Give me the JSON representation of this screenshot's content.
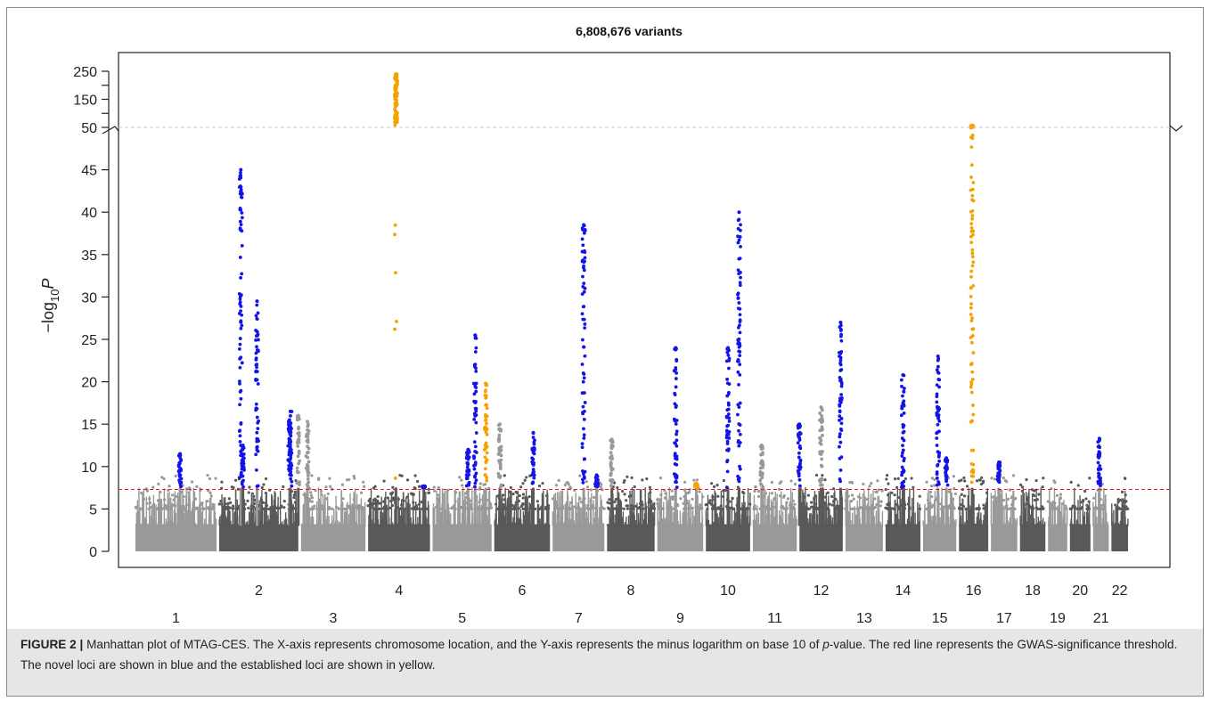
{
  "figure": {
    "caption_label": "FIGURE 2 |",
    "caption_parts": [
      "Manhattan plot of MTAG-CES. The X-axis represents chromosome location, and the Y-axis represents the minus logarithm on base 10 of ",
      "p",
      "-value. The red line represents the GWAS-significance threshold. The novel loci are shown in blue and the established loci are shown in yellow."
    ]
  },
  "chart_data": {
    "type": "scatter",
    "subtype": "manhattan",
    "title": "6,808,676 variants",
    "ylabel_parts": {
      "prefix": "−log",
      "sub": "10",
      "italic": "P"
    },
    "xlabel": "",
    "y_ticks_lower": [
      0,
      5,
      10,
      15,
      20,
      25,
      30,
      35,
      40,
      45,
      50
    ],
    "y_ticks_upper": [
      150,
      250
    ],
    "y_axis_break_at": 50,
    "ylim": [
      0,
      250
    ],
    "significance_threshold": 7.3,
    "chromosomes": [
      {
        "chr": "1",
        "label_row": "lower",
        "shade": "light"
      },
      {
        "chr": "2",
        "label_row": "upper",
        "shade": "dark"
      },
      {
        "chr": "3",
        "label_row": "lower",
        "shade": "light"
      },
      {
        "chr": "4",
        "label_row": "upper",
        "shade": "dark"
      },
      {
        "chr": "5",
        "label_row": "lower",
        "shade": "light"
      },
      {
        "chr": "6",
        "label_row": "upper",
        "shade": "dark"
      },
      {
        "chr": "7",
        "label_row": "lower",
        "shade": "light"
      },
      {
        "chr": "8",
        "label_row": "upper",
        "shade": "dark"
      },
      {
        "chr": "9",
        "label_row": "lower",
        "shade": "light"
      },
      {
        "chr": "10",
        "label_row": "upper",
        "shade": "dark"
      },
      {
        "chr": "11",
        "label_row": "lower",
        "shade": "light"
      },
      {
        "chr": "12",
        "label_row": "upper",
        "shade": "dark"
      },
      {
        "chr": "13",
        "label_row": "lower",
        "shade": "light"
      },
      {
        "chr": "14",
        "label_row": "upper",
        "shade": "dark"
      },
      {
        "chr": "15",
        "label_row": "lower",
        "shade": "light"
      },
      {
        "chr": "16",
        "label_row": "upper",
        "shade": "dark"
      },
      {
        "chr": "17",
        "label_row": "lower",
        "shade": "light"
      },
      {
        "chr": "18",
        "label_row": "upper",
        "shade": "dark"
      },
      {
        "chr": "19",
        "label_row": "lower",
        "shade": "light"
      },
      {
        "chr": "20",
        "label_row": "upper",
        "shade": "dark"
      },
      {
        "chr": "21",
        "label_row": "lower",
        "shade": "light"
      },
      {
        "chr": "22",
        "label_row": "upper",
        "shade": "dark"
      }
    ],
    "peaks": [
      {
        "chr": "1",
        "pos": 0.55,
        "max": 11.5,
        "color": "novel"
      },
      {
        "chr": "1",
        "pos": 1.3,
        "max": 45.0,
        "color": "novel"
      },
      {
        "chr": "1",
        "pos": 1.5,
        "max": 29.5,
        "color": "novel"
      },
      {
        "chr": "1",
        "pos": 1.9,
        "max": 15.5,
        "color": "novel"
      },
      {
        "chr": "2",
        "pos": 0.3,
        "max": 12.5,
        "color": "novel"
      },
      {
        "chr": "2",
        "pos": 0.9,
        "max": 16.5,
        "color": "novel"
      },
      {
        "chr": "2",
        "pos": 1.0,
        "max": 16.0,
        "color": "background"
      },
      {
        "chr": "3",
        "pos": 0.1,
        "max": 15.3,
        "color": "background"
      },
      {
        "chr": "4",
        "pos": 0.45,
        "max": 240,
        "color": "established"
      },
      {
        "chr": "4",
        "pos": 0.9,
        "max": 7.7,
        "color": "novel"
      },
      {
        "chr": "5",
        "pos": 0.6,
        "max": 12.0,
        "color": "novel"
      },
      {
        "chr": "5",
        "pos": 0.72,
        "max": 25.5,
        "color": "novel"
      },
      {
        "chr": "5",
        "pos": 0.9,
        "max": 19.8,
        "color": "established"
      },
      {
        "chr": "6",
        "pos": 0.1,
        "max": 15.0,
        "color": "background"
      },
      {
        "chr": "6",
        "pos": 0.7,
        "max": 14.0,
        "color": "novel"
      },
      {
        "chr": "7",
        "pos": 0.6,
        "max": 38.5,
        "color": "novel"
      },
      {
        "chr": "7",
        "pos": 0.85,
        "max": 9.0,
        "color": "novel"
      },
      {
        "chr": "8",
        "pos": 0.1,
        "max": 13.2,
        "color": "background"
      },
      {
        "chr": "9",
        "pos": 0.4,
        "max": 24.0,
        "color": "novel"
      },
      {
        "chr": "9",
        "pos": 0.85,
        "max": 8.0,
        "color": "established"
      },
      {
        "chr": "10",
        "pos": 0.5,
        "max": 24.0,
        "color": "novel"
      },
      {
        "chr": "10",
        "pos": 0.75,
        "max": 40.0,
        "color": "novel"
      },
      {
        "chr": "11",
        "pos": 0.2,
        "max": 12.5,
        "color": "background"
      },
      {
        "chr": "12",
        "pos": 0.0,
        "max": 15.0,
        "color": "novel"
      },
      {
        "chr": "12",
        "pos": 0.5,
        "max": 17.0,
        "color": "background"
      },
      {
        "chr": "12",
        "pos": 0.95,
        "max": 27.0,
        "color": "novel"
      },
      {
        "chr": "14",
        "pos": 0.5,
        "max": 20.8,
        "color": "novel"
      },
      {
        "chr": "15",
        "pos": 0.45,
        "max": 23.0,
        "color": "novel"
      },
      {
        "chr": "15",
        "pos": 0.7,
        "max": 11.0,
        "color": "novel"
      },
      {
        "chr": "16",
        "pos": 0.45,
        "max": 57,
        "color": "established"
      },
      {
        "chr": "17",
        "pos": 0.3,
        "max": 10.5,
        "color": "novel"
      },
      {
        "chr": "21",
        "pos": 0.4,
        "max": 13.3,
        "color": "novel"
      }
    ],
    "colors": {
      "novel": "#1414e6",
      "established": "#f5a100",
      "light": "#999999",
      "dark": "#595959",
      "threshold": "#e02020",
      "break_line": "#c8c8c8"
    }
  }
}
